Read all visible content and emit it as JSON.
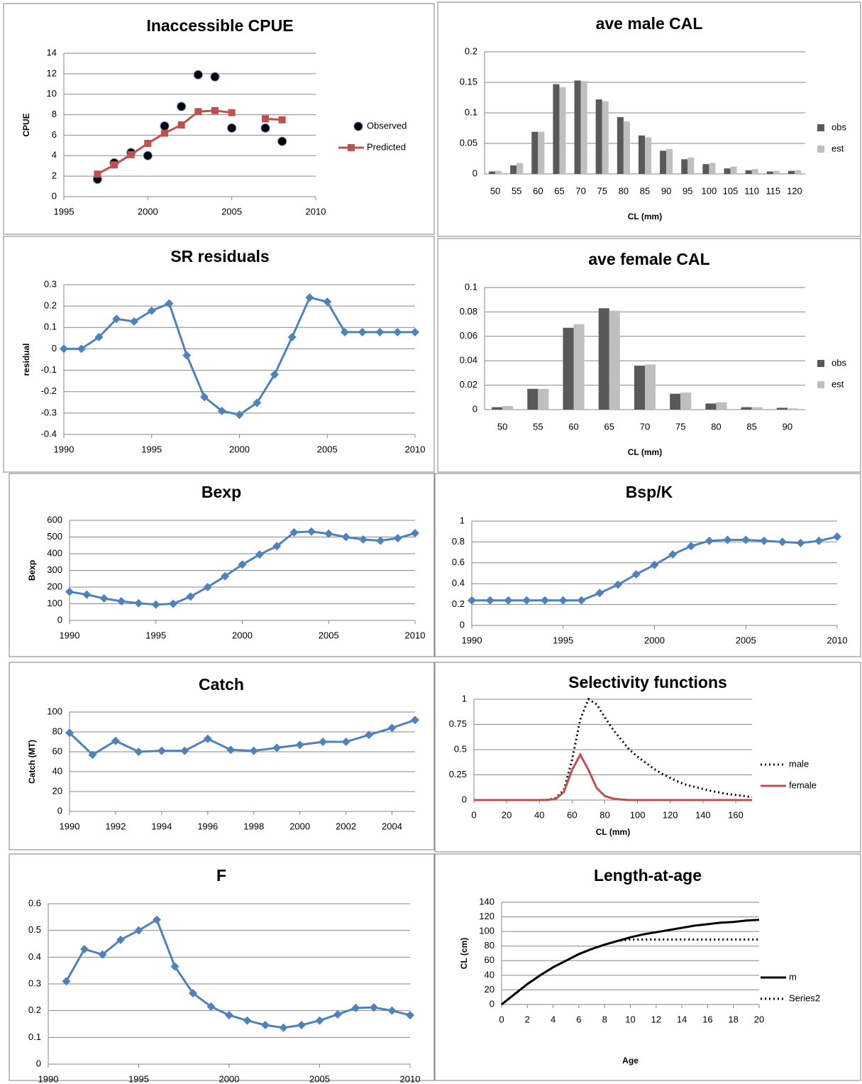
{
  "chart_data": [
    {
      "type": "line",
      "title": "Inaccessible CPUE",
      "y_label": "CPUE",
      "x": [
        1997,
        1998,
        1999,
        2000,
        2001,
        2002,
        2003,
        2004,
        2005,
        2006,
        2007,
        2008
      ],
      "xlim": [
        1995,
        2010
      ],
      "xticks": [
        1995,
        2000,
        2005,
        2010
      ],
      "ylim": [
        0,
        14
      ],
      "yticks": [
        0,
        2,
        4,
        6,
        8,
        10,
        12,
        14
      ],
      "grid": true,
      "series": [
        {
          "name": "Observed",
          "color": "#000000",
          "marker": "circle",
          "line": "none",
          "values": [
            1.7,
            3.3,
            4.3,
            4.0,
            6.9,
            8.8,
            11.9,
            11.7,
            6.7,
            null,
            6.7,
            5.4
          ]
        },
        {
          "name": "Predicted",
          "color": "#c0504d",
          "marker": "square",
          "line": "solid",
          "values": [
            2.2,
            3.1,
            4.1,
            5.2,
            6.2,
            7.0,
            8.3,
            8.4,
            8.2,
            null,
            7.6,
            7.5
          ]
        }
      ]
    },
    {
      "type": "bar",
      "title": "ave male CAL",
      "x_label": "CL (mm)",
      "categories": [
        "50",
        "55",
        "60",
        "65",
        "70",
        "75",
        "80",
        "85",
        "90",
        "95",
        "100",
        "105",
        "110",
        "115",
        "120"
      ],
      "ylim": [
        0,
        0.2
      ],
      "yticks": [
        0,
        0.05,
        0.1,
        0.15,
        0.2
      ],
      "grid": true,
      "series": [
        {
          "name": "obs",
          "color": "#595959",
          "values": [
            0.004,
            0.014,
            0.069,
            0.147,
            0.153,
            0.122,
            0.093,
            0.063,
            0.038,
            0.024,
            0.016,
            0.009,
            0.006,
            0.004,
            0.005
          ]
        },
        {
          "name": "est",
          "color": "#bfbfbf",
          "values": [
            0.005,
            0.018,
            0.069,
            0.142,
            0.152,
            0.119,
            0.086,
            0.06,
            0.041,
            0.027,
            0.018,
            0.012,
            0.008,
            0.005,
            0.006
          ]
        }
      ]
    },
    {
      "type": "line",
      "title": "SR residuals",
      "y_label": "residual",
      "x": [
        1990,
        1991,
        1992,
        1993,
        1994,
        1995,
        1996,
        1997,
        1998,
        1999,
        2000,
        2001,
        2002,
        2003,
        2004,
        2005,
        2006,
        2007,
        2008,
        2009,
        2010
      ],
      "xlim": [
        1990,
        2010
      ],
      "xticks": [
        1990,
        1995,
        2000,
        2005,
        2010
      ],
      "ylim": [
        -0.4,
        0.3
      ],
      "yticks": [
        -0.4,
        -0.3,
        -0.2,
        -0.1,
        0,
        0.1,
        0.2,
        0.3
      ],
      "grid": true,
      "series": [
        {
          "name": null,
          "color": "#4f81bd",
          "marker": "diamond",
          "line": "solid",
          "values": [
            0,
            0,
            0.055,
            0.14,
            0.128,
            0.178,
            0.212,
            -0.03,
            -0.225,
            -0.29,
            -0.308,
            -0.252,
            -0.12,
            0.055,
            0.24,
            0.22,
            0.078,
            0.078,
            0.078,
            0.078,
            0.078
          ]
        }
      ]
    },
    {
      "type": "bar",
      "title": "ave female CAL",
      "x_label": "CL (mm)",
      "categories": [
        "50",
        "55",
        "60",
        "65",
        "70",
        "75",
        "80",
        "85",
        "90"
      ],
      "ylim": [
        0,
        0.1
      ],
      "yticks": [
        0,
        0.02,
        0.04,
        0.06,
        0.08,
        0.1
      ],
      "grid": true,
      "series": [
        {
          "name": "obs",
          "color": "#595959",
          "values": [
            0.002,
            0.017,
            0.067,
            0.083,
            0.036,
            0.013,
            0.005,
            0.002,
            0.0015
          ]
        },
        {
          "name": "est",
          "color": "#bfbfbf",
          "values": [
            0.003,
            0.017,
            0.07,
            0.081,
            0.037,
            0.014,
            0.006,
            0.002,
            0.001
          ]
        }
      ]
    },
    {
      "type": "line",
      "title": "Bexp",
      "y_label": "Bexp",
      "x": [
        1990,
        1991,
        1992,
        1993,
        1994,
        1995,
        1996,
        1997,
        1998,
        1999,
        2000,
        2001,
        2002,
        2003,
        2004,
        2005,
        2006,
        2007,
        2008,
        2009,
        2010
      ],
      "xlim": [
        1990,
        2010
      ],
      "xticks": [
        1990,
        1995,
        2000,
        2005,
        2010
      ],
      "ylim": [
        0,
        600
      ],
      "yticks": [
        0,
        100,
        200,
        300,
        400,
        500,
        600
      ],
      "grid": true,
      "series": [
        {
          "name": null,
          "color": "#4f81bd",
          "marker": "diamond",
          "line": "solid",
          "values": [
            172,
            155,
            132,
            115,
            103,
            95,
            100,
            143,
            200,
            265,
            335,
            395,
            445,
            528,
            533,
            520,
            500,
            485,
            478,
            493,
            523
          ]
        }
      ]
    },
    {
      "type": "line",
      "title": "Bsp/K",
      "x": [
        1990,
        1991,
        1992,
        1993,
        1994,
        1995,
        1996,
        1997,
        1998,
        1999,
        2000,
        2001,
        2002,
        2003,
        2004,
        2005,
        2006,
        2007,
        2008,
        2009,
        2010
      ],
      "xlim": [
        1990,
        2010
      ],
      "xticks": [
        1990,
        1995,
        2000,
        2005,
        2010
      ],
      "ylim": [
        0,
        1
      ],
      "yticks": [
        0,
        0.2,
        0.4,
        0.6,
        0.8,
        1
      ],
      "grid": true,
      "series": [
        {
          "name": null,
          "color": "#4f81bd",
          "marker": "diamond",
          "line": "solid",
          "values": [
            0.24,
            0.24,
            0.24,
            0.24,
            0.24,
            0.24,
            0.24,
            0.31,
            0.39,
            0.49,
            0.58,
            0.68,
            0.76,
            0.81,
            0.82,
            0.82,
            0.81,
            0.8,
            0.79,
            0.81,
            0.85
          ]
        }
      ]
    },
    {
      "type": "line",
      "title": "Catch",
      "y_label": "Catch (MT)",
      "x": [
        1990,
        1991,
        1992,
        1993,
        1994,
        1995,
        1996,
        1997,
        1998,
        1999,
        2000,
        2001,
        2002,
        2003,
        2004,
        2005
      ],
      "xlim": [
        1990,
        2005
      ],
      "xticks": [
        1990,
        1992,
        1994,
        1996,
        1998,
        2000,
        2002,
        2004
      ],
      "ylim": [
        0,
        100
      ],
      "yticks": [
        0,
        20,
        40,
        60,
        80,
        100
      ],
      "grid": true,
      "series": [
        {
          "name": null,
          "color": "#4f81bd",
          "marker": "diamond",
          "line": "solid",
          "values": [
            79,
            57,
            71,
            60,
            61,
            61,
            73,
            62,
            61,
            64,
            67,
            70,
            70,
            77,
            84,
            92
          ]
        }
      ]
    },
    {
      "type": "line",
      "title": "Selectivity functions",
      "x_label": "CL (mm)",
      "x": [
        0,
        5,
        10,
        15,
        20,
        25,
        30,
        35,
        40,
        45,
        50,
        55,
        60,
        65,
        70,
        75,
        80,
        85,
        90,
        95,
        100,
        105,
        110,
        115,
        120,
        125,
        130,
        135,
        140,
        145,
        150,
        155,
        160,
        165,
        170
      ],
      "xlim": [
        0,
        170
      ],
      "xticks": [
        0,
        20,
        40,
        60,
        80,
        100,
        120,
        140,
        160
      ],
      "ylim": [
        0,
        1
      ],
      "yticks": [
        0,
        0.25,
        0.5,
        0.75,
        1
      ],
      "grid": true,
      "series": [
        {
          "name": "male",
          "color": "#000000",
          "marker": "none",
          "line": "dotted",
          "values": [
            0,
            0,
            0,
            0,
            0,
            0,
            0,
            0,
            0,
            0.002,
            0.02,
            0.1,
            0.4,
            0.8,
            1.0,
            0.95,
            0.82,
            0.7,
            0.6,
            0.5,
            0.43,
            0.37,
            0.31,
            0.26,
            0.22,
            0.18,
            0.15,
            0.13,
            0.11,
            0.09,
            0.075,
            0.06,
            0.05,
            0.04,
            0.03
          ]
        },
        {
          "name": "female",
          "color": "#c0504d",
          "marker": "none",
          "line": "solid",
          "values": [
            0,
            0,
            0,
            0,
            0,
            0,
            0,
            0,
            0,
            0.002,
            0.01,
            0.08,
            0.3,
            0.45,
            0.3,
            0.12,
            0.04,
            0.015,
            0.005,
            0,
            0,
            0,
            0,
            0,
            0,
            0,
            0,
            0,
            0,
            0,
            0,
            0,
            0,
            0,
            0
          ]
        }
      ]
    },
    {
      "type": "line",
      "title": "F",
      "x": [
        1991,
        1992,
        1993,
        1994,
        1995,
        1996,
        1997,
        1998,
        1999,
        2000,
        2001,
        2002,
        2003,
        2004,
        2005,
        2006,
        2007,
        2008,
        2009,
        2010
      ],
      "xlim": [
        1990,
        2010
      ],
      "xticks": [
        1990,
        1995,
        2000,
        2005,
        2010
      ],
      "ylim": [
        0,
        0.6
      ],
      "yticks": [
        0,
        0.1,
        0.2,
        0.3,
        0.4,
        0.5,
        0.6
      ],
      "grid": true,
      "series": [
        {
          "name": null,
          "color": "#4f81bd",
          "marker": "diamond",
          "line": "solid",
          "values": [
            0.31,
            0.43,
            0.41,
            0.465,
            0.5,
            0.54,
            0.365,
            0.265,
            0.215,
            0.183,
            0.163,
            0.146,
            0.136,
            0.146,
            0.163,
            0.186,
            0.21,
            0.212,
            0.2,
            0.183
          ]
        }
      ]
    },
    {
      "type": "line",
      "title": "Length-at-age",
      "x_label": "Age",
      "y_label": "CL (cm)",
      "x": [
        0,
        1,
        2,
        3,
        4,
        5,
        6,
        7,
        8,
        9,
        10,
        11,
        12,
        13,
        14,
        15,
        16,
        17,
        18,
        19,
        20
      ],
      "xlim": [
        0,
        20
      ],
      "xticks": [
        0,
        2,
        4,
        6,
        8,
        10,
        12,
        14,
        16,
        18,
        20
      ],
      "ylim": [
        0,
        140
      ],
      "yticks": [
        0,
        20,
        40,
        60,
        80,
        100,
        120,
        140
      ],
      "grid": true,
      "series": [
        {
          "name": "m",
          "color": "#000000",
          "marker": "none",
          "line": "solid",
          "values": [
            0,
            14,
            28,
            40,
            51,
            60,
            69,
            76,
            82,
            87,
            92,
            96,
            99,
            102,
            105,
            108,
            110,
            112,
            113,
            115,
            116
          ]
        },
        {
          "name": "Series2",
          "color": "#000000",
          "marker": "none",
          "line": "dotted",
          "values": [
            0,
            14,
            28,
            40,
            51,
            60,
            69,
            76,
            82,
            87,
            89,
            89,
            89,
            89,
            89,
            89,
            89,
            89,
            89,
            89,
            89
          ]
        }
      ]
    }
  ]
}
